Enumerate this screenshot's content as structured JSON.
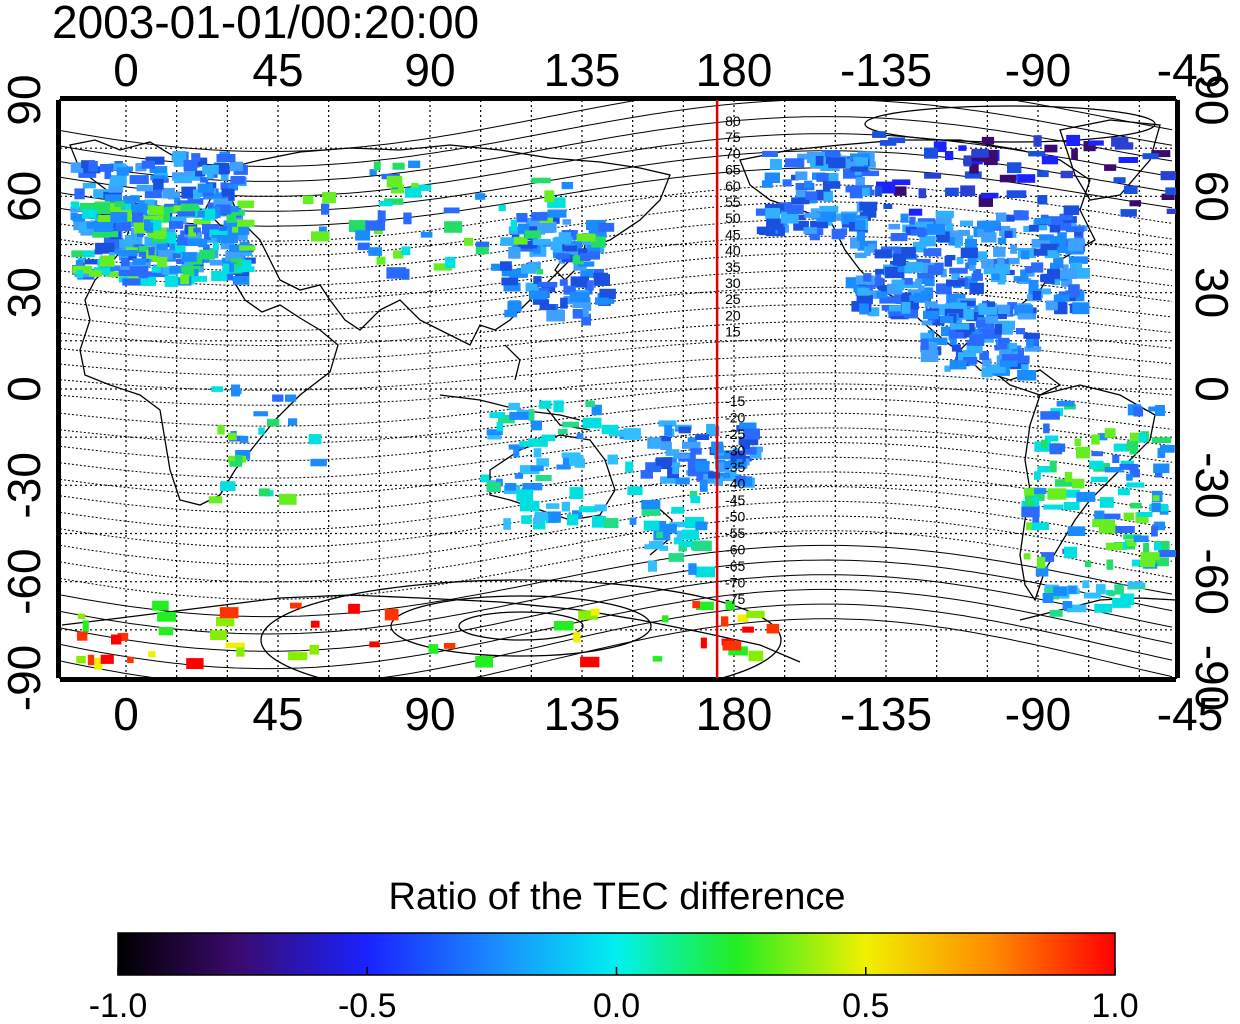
{
  "map": {
    "timestamp": "2003-01-01/00:20:00",
    "top_lon_ticks": [
      "0",
      "45",
      "90",
      "135",
      "180",
      "-135",
      "-90",
      "-45"
    ],
    "bottom_lon_ticks": [
      "0",
      "45",
      "90",
      "135",
      "180",
      "-135",
      "-90",
      "-45"
    ],
    "left_lat_ticks": [
      "90",
      "60",
      "30",
      "0",
      "-30",
      "-60",
      "-90"
    ],
    "right_lat_ticks": [
      "90",
      "60",
      "30",
      "0",
      "-30",
      "-60",
      "-90"
    ],
    "meridian_lon": 175,
    "north_contour_labels": [
      "80",
      "75",
      "70",
      "65",
      "60",
      "55",
      "50",
      "45",
      "40",
      "35",
      "30",
      "25",
      "20",
      "15"
    ],
    "south_contour_labels": [
      "-15",
      "-20",
      "-25",
      "-30",
      "-35",
      "-40",
      "-45",
      "-50",
      "-55",
      "-60",
      "-65",
      "-70",
      "-75"
    ],
    "colors": {
      "meridian": "#e00000"
    }
  },
  "colorbar": {
    "title": "Ratio of the TEC difference",
    "min": -1.0,
    "max": 1.0,
    "tick_labels": [
      "-1.0",
      "-0.5",
      "0.0",
      "0.5",
      "1.0"
    ]
  }
}
